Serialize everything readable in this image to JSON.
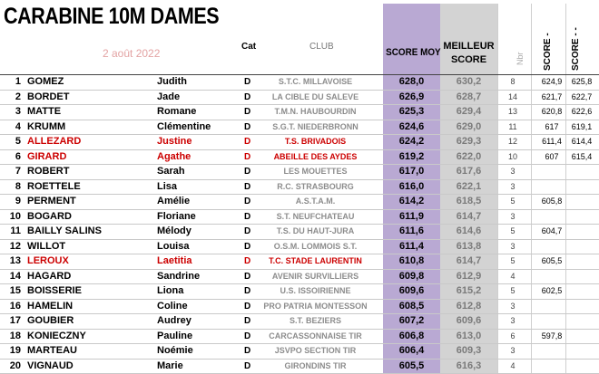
{
  "title": "CARABINE 10M DAMES",
  "date": "2 août 2022",
  "headers": {
    "cat": "Cat",
    "club": "CLUB",
    "score_moy": "SCORE MOY",
    "meilleur": "MEILLEUR",
    "score": "SCORE",
    "nbr": "Nbr",
    "score_minus": "SCORE -",
    "score_minus_minus": "SCORE - -"
  },
  "highlight_color": "#cc0000",
  "rows": [
    {
      "rank": "1",
      "nom": "GOMEZ",
      "prenom": "Judith",
      "cat": "D",
      "club": "S.T.C. MILLAVOISE",
      "moy": "628,0",
      "meil": "630,2",
      "nbr": "8",
      "s1": "624,9",
      "s2": "625,8",
      "red": false
    },
    {
      "rank": "2",
      "nom": "BORDET",
      "prenom": "Jade",
      "cat": "D",
      "club": "LA CIBLE DU SALEVE",
      "moy": "626,9",
      "meil": "628,7",
      "nbr": "14",
      "s1": "621,7",
      "s2": "622,7",
      "red": false
    },
    {
      "rank": "3",
      "nom": "MATTE",
      "prenom": "Romane",
      "cat": "D",
      "club": "T.M.N. HAUBOURDIN",
      "moy": "625,3",
      "meil": "629,4",
      "nbr": "13",
      "s1": "620,8",
      "s2": "622,6",
      "red": false
    },
    {
      "rank": "4",
      "nom": "KRUMM",
      "prenom": "Clémentine",
      "cat": "D",
      "club": "S.G.T. NIEDERBRONN",
      "moy": "624,6",
      "meil": "629,0",
      "nbr": "11",
      "s1": "617",
      "s2": "619,1",
      "red": false
    },
    {
      "rank": "5",
      "nom": "ALLEZARD",
      "prenom": "Justine",
      "cat": "D",
      "club": "T.S. BRIVADOIS",
      "moy": "624,2",
      "meil": "629,3",
      "nbr": "12",
      "s1": "611,4",
      "s2": "614,4",
      "red": true
    },
    {
      "rank": "6",
      "nom": "GIRARD",
      "prenom": "Agathe",
      "cat": "D",
      "club": "ABEILLE DES AYDES",
      "moy": "619,2",
      "meil": "622,0",
      "nbr": "10",
      "s1": "607",
      "s2": "615,4",
      "red": true
    },
    {
      "rank": "7",
      "nom": "ROBERT",
      "prenom": "Sarah",
      "cat": "D",
      "club": "LES MOUETTES",
      "moy": "617,0",
      "meil": "617,6",
      "nbr": "3",
      "s1": "",
      "s2": "",
      "red": false
    },
    {
      "rank": "8",
      "nom": "ROETTELE",
      "prenom": "Lisa",
      "cat": "D",
      "club": "R.C. STRASBOURG",
      "moy": "616,0",
      "meil": "622,1",
      "nbr": "3",
      "s1": "",
      "s2": "",
      "red": false
    },
    {
      "rank": "9",
      "nom": "PERMENT",
      "prenom": "Amélie",
      "cat": "D",
      "club": "A.S.T.A.M.",
      "moy": "614,2",
      "meil": "618,5",
      "nbr": "5",
      "s1": "605,8",
      "s2": "",
      "red": false
    },
    {
      "rank": "10",
      "nom": "BOGARD",
      "prenom": "Floriane",
      "cat": "D",
      "club": "S.T. NEUFCHATEAU",
      "moy": "611,9",
      "meil": "614,7",
      "nbr": "3",
      "s1": "",
      "s2": "",
      "red": false
    },
    {
      "rank": "11",
      "nom": "BAILLY SALINS",
      "prenom": "Mélody",
      "cat": "D",
      "club": "T.S. DU HAUT-JURA",
      "moy": "611,6",
      "meil": "614,6",
      "nbr": "5",
      "s1": "604,7",
      "s2": "",
      "red": false
    },
    {
      "rank": "12",
      "nom": "WILLOT",
      "prenom": "Louisa",
      "cat": "D",
      "club": "O.S.M. LOMMOIS S.T.",
      "moy": "611,4",
      "meil": "613,8",
      "nbr": "3",
      "s1": "",
      "s2": "",
      "red": false
    },
    {
      "rank": "13",
      "nom": "LEROUX",
      "prenom": "Laetitia",
      "cat": "D",
      "club": "T.C. STADE LAURENTIN",
      "moy": "610,8",
      "meil": "614,7",
      "nbr": "5",
      "s1": "605,5",
      "s2": "",
      "red": true
    },
    {
      "rank": "14",
      "nom": "HAGARD",
      "prenom": "Sandrine",
      "cat": "D",
      "club": "AVENIR SURVILLIERS",
      "moy": "609,8",
      "meil": "612,9",
      "nbr": "4",
      "s1": "",
      "s2": "",
      "red": false
    },
    {
      "rank": "15",
      "nom": "BOISSERIE",
      "prenom": "Liona",
      "cat": "D",
      "club": "U.S. ISSOIRIENNE",
      "moy": "609,6",
      "meil": "615,2",
      "nbr": "5",
      "s1": "602,5",
      "s2": "",
      "red": false
    },
    {
      "rank": "16",
      "nom": "HAMELIN",
      "prenom": "Coline",
      "cat": "D",
      "club": "PRO PATRIA MONTESSON",
      "moy": "608,5",
      "meil": "612,8",
      "nbr": "3",
      "s1": "",
      "s2": "",
      "red": false
    },
    {
      "rank": "17",
      "nom": "GOUBIER",
      "prenom": "Audrey",
      "cat": "D",
      "club": "S.T. BEZIERS",
      "moy": "607,2",
      "meil": "609,6",
      "nbr": "3",
      "s1": "",
      "s2": "",
      "red": false
    },
    {
      "rank": "18",
      "nom": "KONIECZNY",
      "prenom": "Pauline",
      "cat": "D",
      "club": "CARCASSONNAISE TIR",
      "moy": "606,8",
      "meil": "613,0",
      "nbr": "6",
      "s1": "597,8",
      "s2": "",
      "red": false
    },
    {
      "rank": "19",
      "nom": "MARTEAU",
      "prenom": "Noémie",
      "cat": "D",
      "club": "JSVPO SECTION TIR",
      "moy": "606,4",
      "meil": "609,3",
      "nbr": "3",
      "s1": "",
      "s2": "",
      "red": false
    },
    {
      "rank": "20",
      "nom": "VIGNAUD",
      "prenom": "Marie",
      "cat": "D",
      "club": "GIRONDINS TIR",
      "moy": "605,5",
      "meil": "616,3",
      "nbr": "4",
      "s1": "",
      "s2": "",
      "red": false
    }
  ]
}
